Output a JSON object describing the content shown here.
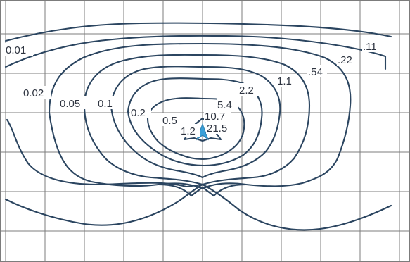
{
  "diagram": {
    "colors": {
      "contour": "#2b4560",
      "grid": "#7c7c7c",
      "marker": "#3aa0d8",
      "label": "#2e3440"
    },
    "marker_icon": "light-source-arrow-icon",
    "contours": [
      {
        "id": "c001",
        "label": "0.01"
      },
      {
        "id": "c002",
        "label": "0.02"
      },
      {
        "id": "c005",
        "label": "0.05"
      },
      {
        "id": "c01",
        "label": "0.1"
      },
      {
        "id": "c02",
        "label": "0.2"
      },
      {
        "id": "c05",
        "label": "0.5"
      },
      {
        "id": "c12",
        "label": "1.2"
      },
      {
        "id": "c21",
        "label": "21.5"
      },
      {
        "id": "c107",
        "label": "10.7"
      },
      {
        "id": "c54",
        "label": "5.4"
      },
      {
        "id": "c22",
        "label": "2.2"
      },
      {
        "id": "c11",
        "label": "1.1"
      },
      {
        "id": "c054",
        "label": ".54"
      },
      {
        "id": "c022",
        "label": ".22"
      },
      {
        "id": "c011",
        "label": ".11"
      }
    ]
  }
}
